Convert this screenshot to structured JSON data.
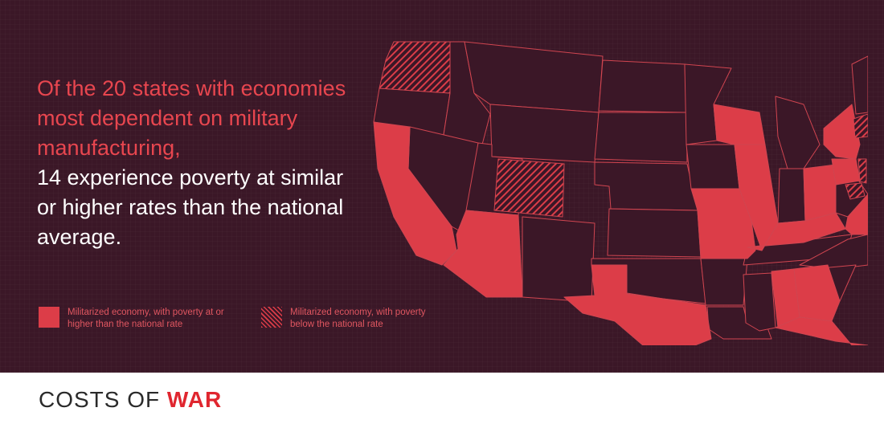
{
  "headline": {
    "accent": "Of the 20 states with economies most dependent on military manufacturing,",
    "plain": "14 experience poverty at similar or higher rates than the national average."
  },
  "legend": [
    {
      "label": "Militarized economy, with poverty at or higher than the national rate",
      "style": "solid"
    },
    {
      "label": "Militarized economy, with poverty below the national rate",
      "style": "hatched"
    }
  ],
  "map": {
    "states_at_or_above": [
      "California",
      "Arizona",
      "Texas",
      "Missouri",
      "Illinois",
      "Wisconsin",
      "Ohio",
      "Kentucky",
      "Virginia",
      "Alabama",
      "Georgia",
      "Florida",
      "New York",
      "Pennsylvania"
    ],
    "states_below": [
      "Washington",
      "Colorado",
      "Maryland",
      "New Jersey",
      "Connecticut",
      "Massachusetts"
    ]
  },
  "footer": {
    "brand_light": "COSTS OF",
    "brand_bold": "WAR"
  },
  "colors": {
    "background": "#3b1727",
    "accent": "#e8464f",
    "state_fill": "#dc3d48",
    "state_border": "#d04550"
  }
}
